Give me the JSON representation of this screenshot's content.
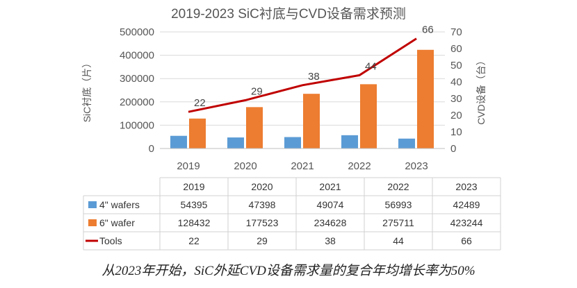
{
  "chart_data": {
    "type": "bar",
    "title": "2019-2023 SiC衬底与CVD设备需求预测",
    "categories": [
      "2019",
      "2020",
      "2021",
      "2022",
      "2023"
    ],
    "ylabel_left": "SiC衬底（片）",
    "ylabel_right": "CVD设备（台）",
    "ylim_left": [
      0,
      500000
    ],
    "ylim_right": [
      0,
      70
    ],
    "yticks_left": [
      "0",
      "100000",
      "200000",
      "300000",
      "400000",
      "500000"
    ],
    "yticks_right": [
      "0",
      "10",
      "20",
      "30",
      "40",
      "50",
      "60",
      "70"
    ],
    "series": [
      {
        "name": "4\" wafers",
        "kind": "bar",
        "axis": "left",
        "color": "#5b9bd5",
        "values": [
          54395,
          47398,
          49074,
          56993,
          42489
        ]
      },
      {
        "name": "6\" wafer",
        "kind": "bar",
        "axis": "left",
        "color": "#ed7d31",
        "values": [
          128432,
          177523,
          234628,
          275711,
          423244
        ]
      },
      {
        "name": "Tools",
        "kind": "line",
        "axis": "right",
        "color": "#c00000",
        "values": [
          22,
          29,
          38,
          44,
          66
        ]
      }
    ],
    "table": {
      "header": [
        "2019",
        "2020",
        "2021",
        "2022",
        "2023"
      ],
      "rows": [
        {
          "label": "4\" wafers",
          "cells": [
            "54395",
            "47398",
            "49074",
            "56993",
            "42489"
          ]
        },
        {
          "label": "6\" wafer",
          "cells": [
            "128432",
            "177523",
            "234628",
            "275711",
            "423244"
          ]
        },
        {
          "label": "Tools",
          "cells": [
            "22",
            "29",
            "38",
            "44",
            "66"
          ]
        }
      ]
    },
    "data_labels": [
      "22",
      "29",
      "38",
      "44",
      "66"
    ]
  },
  "caption": "从2023年开始，SiC外延CVD设备需求量的复合年均增长率为50%"
}
